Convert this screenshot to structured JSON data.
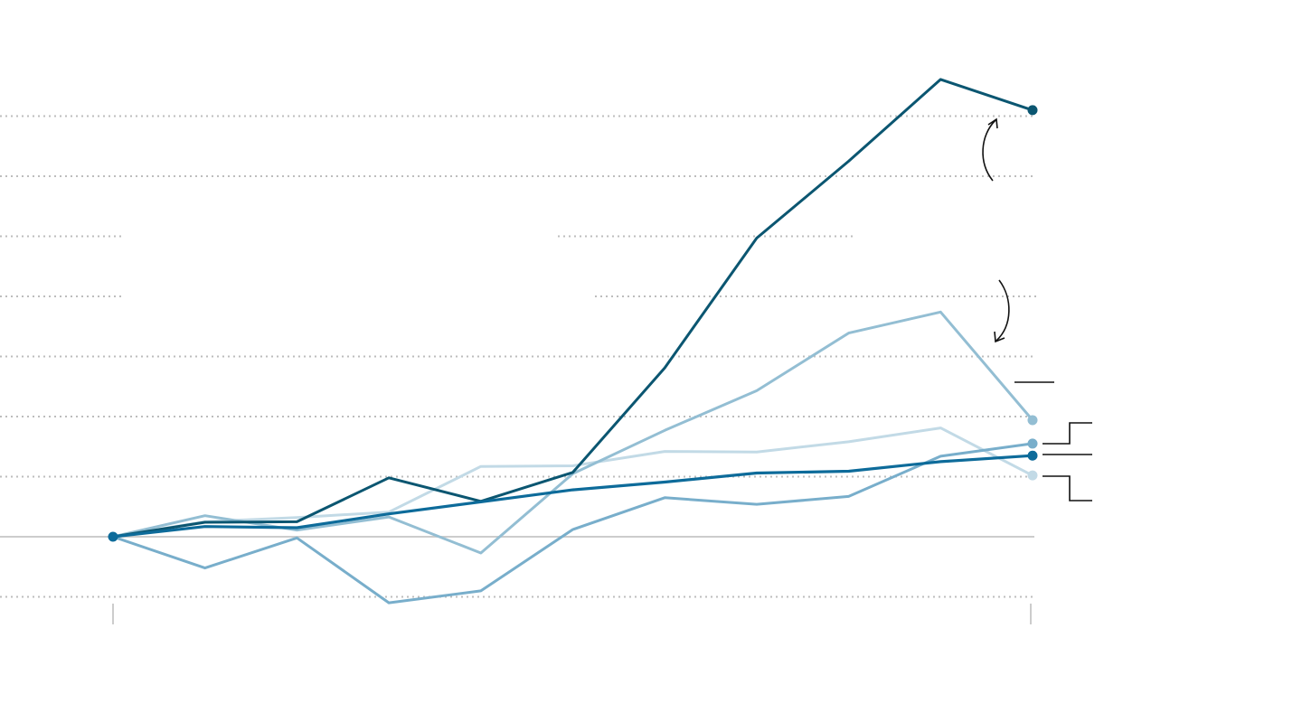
{
  "chart_data": {
    "type": "line",
    "title": "",
    "xlabel": "",
    "ylabel": "",
    "x": [
      0,
      1,
      2,
      3,
      4,
      5,
      6,
      7,
      8,
      9,
      10
    ],
    "ylim": [
      -1,
      7
    ],
    "grid": true,
    "series": [
      {
        "color": "#0b5671",
        "width": 3,
        "values": [
          0.0,
          0.24,
          0.25,
          0.98,
          0.59,
          1.07,
          2.81,
          4.97,
          6.25,
          7.61,
          7.1
        ]
      },
      {
        "color": "#93bed3",
        "width": 3,
        "values": [
          0.0,
          0.35,
          0.11,
          0.33,
          -0.27,
          1.05,
          1.77,
          2.43,
          3.39,
          3.74,
          1.94
        ]
      },
      {
        "color": "#c2dae6",
        "width": 3,
        "values": [
          0.0,
          0.25,
          0.32,
          0.41,
          1.17,
          1.18,
          1.42,
          1.41,
          1.58,
          1.81,
          1.02
        ]
      },
      {
        "color": "#78aecb",
        "width": 3,
        "values": [
          0.0,
          -0.52,
          -0.02,
          -1.1,
          -0.9,
          0.12,
          0.65,
          0.54,
          0.67,
          1.34,
          1.55
        ]
      },
      {
        "color": "#0d6b9a",
        "width": 3.2,
        "values": [
          0.0,
          0.17,
          0.15,
          0.38,
          0.58,
          0.78,
          0.91,
          1.06,
          1.09,
          1.25,
          1.35
        ]
      }
    ],
    "colors": {
      "gridline": "#bdbdbd",
      "baseline": "#cccccc",
      "tick": "#cccccc",
      "annotation": "#111111"
    }
  }
}
